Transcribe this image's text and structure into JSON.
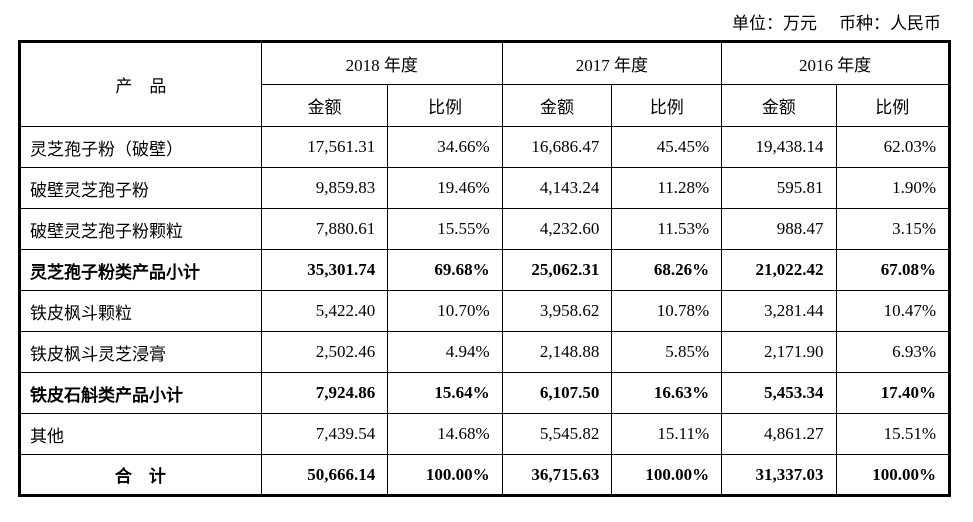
{
  "meta": {
    "unit_label": "单位：万元",
    "currency_label": "币种：人民币"
  },
  "table": {
    "product_header": "产　品",
    "year_headers": [
      "2018 年度",
      "2017 年度",
      "2016 年度"
    ],
    "sub_headers": {
      "amount": "金额",
      "ratio": "比例"
    },
    "rows": [
      {
        "product": "灵芝孢子粉（破壁）",
        "bold": false,
        "total": false,
        "values": [
          "17,561.31",
          "34.66%",
          "16,686.47",
          "45.45%",
          "19,438.14",
          "62.03%"
        ]
      },
      {
        "product": "破壁灵芝孢子粉",
        "bold": false,
        "total": false,
        "values": [
          "9,859.83",
          "19.46%",
          "4,143.24",
          "11.28%",
          "595.81",
          "1.90%"
        ]
      },
      {
        "product": "破壁灵芝孢子粉颗粒",
        "bold": false,
        "total": false,
        "values": [
          "7,880.61",
          "15.55%",
          "4,232.60",
          "11.53%",
          "988.47",
          "3.15%"
        ]
      },
      {
        "product": "灵芝孢子粉类产品小计",
        "bold": true,
        "total": false,
        "values": [
          "35,301.74",
          "69.68%",
          "25,062.31",
          "68.26%",
          "21,022.42",
          "67.08%"
        ]
      },
      {
        "product": "铁皮枫斗颗粒",
        "bold": false,
        "total": false,
        "values": [
          "5,422.40",
          "10.70%",
          "3,958.62",
          "10.78%",
          "3,281.44",
          "10.47%"
        ]
      },
      {
        "product": "铁皮枫斗灵芝浸膏",
        "bold": false,
        "total": false,
        "values": [
          "2,502.46",
          "4.94%",
          "2,148.88",
          "5.85%",
          "2,171.90",
          "6.93%"
        ]
      },
      {
        "product": "铁皮石斛类产品小计",
        "bold": true,
        "total": false,
        "values": [
          "7,924.86",
          "15.64%",
          "6,107.50",
          "16.63%",
          "5,453.34",
          "17.40%"
        ]
      },
      {
        "product": "其他",
        "bold": false,
        "total": false,
        "values": [
          "7,439.54",
          "14.68%",
          "5,545.82",
          "15.11%",
          "4,861.27",
          "15.51%"
        ]
      },
      {
        "product": "合　计",
        "bold": true,
        "total": true,
        "values": [
          "50,666.14",
          "100.00%",
          "36,715.63",
          "100.00%",
          "31,337.03",
          "100.00%"
        ]
      }
    ]
  }
}
